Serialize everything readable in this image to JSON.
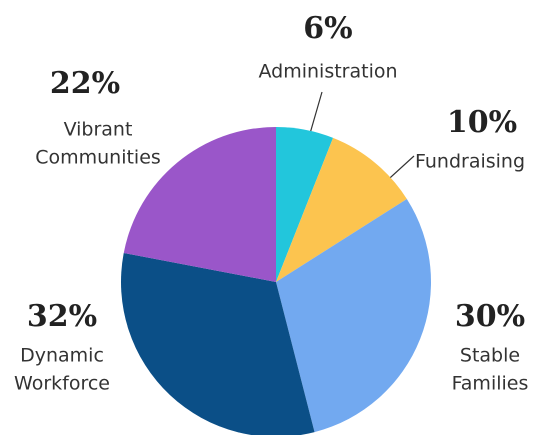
{
  "chart_data": {
    "type": "pie",
    "categories": [
      [
        "Administration"
      ],
      [
        "Fundraising"
      ],
      [
        "Stable",
        "Families"
      ],
      [
        "Dynamic",
        "Workforce"
      ],
      [
        "Vibrant",
        "Communities"
      ]
    ],
    "values": [
      6,
      10,
      30,
      32,
      22
    ],
    "value_labels": [
      "6%",
      "10%",
      "30%",
      "32%",
      "22%"
    ],
    "colors": [
      "#22c6dc",
      "#fcc44f",
      "#72a9f0",
      "#0b4f87",
      "#9a56c9"
    ]
  }
}
